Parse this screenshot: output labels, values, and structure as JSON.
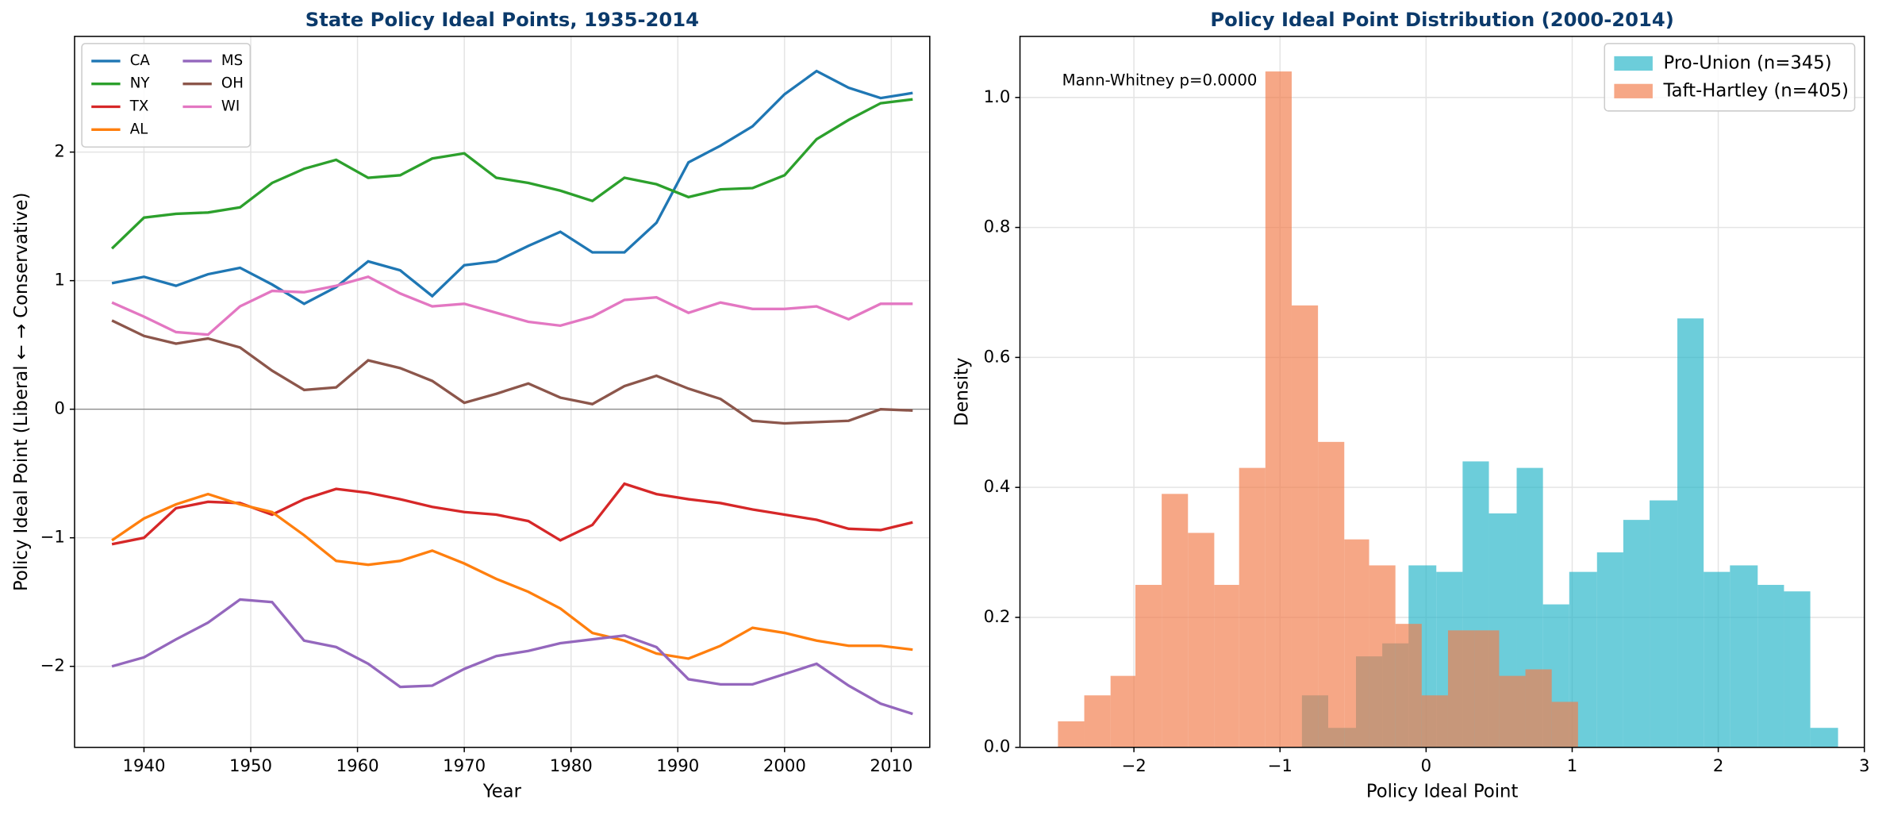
{
  "chart_data": [
    {
      "type": "line",
      "title": "State Policy Ideal Points, 1935-2014",
      "x_label": "Year",
      "y_label": "Policy Ideal Point (Liberal ← → Conservative)",
      "x": [
        1937,
        1940,
        1943,
        1946,
        1949,
        1952,
        1955,
        1958,
        1961,
        1964,
        1967,
        1970,
        1973,
        1976,
        1979,
        1982,
        1985,
        1988,
        1991,
        1994,
        1997,
        2000,
        2003,
        2006,
        2009,
        2012
      ],
      "series": [
        {
          "name": "CA",
          "color": "#1f77b4",
          "values": [
            0.98,
            1.03,
            0.96,
            1.05,
            1.1,
            0.97,
            0.82,
            0.95,
            1.15,
            1.08,
            0.88,
            1.12,
            1.15,
            1.27,
            1.38,
            1.22,
            1.22,
            1.45,
            1.92,
            2.05,
            2.2,
            2.45,
            2.63,
            2.5,
            2.42,
            2.46
          ]
        },
        {
          "name": "NY",
          "color": "#2ca02c",
          "values": [
            1.25,
            1.49,
            1.52,
            1.53,
            1.57,
            1.76,
            1.87,
            1.94,
            1.8,
            1.82,
            1.95,
            1.99,
            1.8,
            1.76,
            1.7,
            1.62,
            1.8,
            1.75,
            1.65,
            1.71,
            1.72,
            1.82,
            2.1,
            2.25,
            2.38,
            2.41
          ]
        },
        {
          "name": "TX",
          "color": "#d62728",
          "values": [
            -1.05,
            -1.0,
            -0.77,
            -0.72,
            -0.73,
            -0.82,
            -0.7,
            -0.62,
            -0.65,
            -0.7,
            -0.76,
            -0.8,
            -0.82,
            -0.87,
            -1.02,
            -0.9,
            -0.58,
            -0.66,
            -0.7,
            -0.73,
            -0.78,
            -0.82,
            -0.86,
            -0.93,
            -0.94,
            -0.88
          ]
        },
        {
          "name": "AL",
          "color": "#ff7f0e",
          "values": [
            -1.02,
            -0.85,
            -0.74,
            -0.66,
            -0.74,
            -0.8,
            -0.98,
            -1.18,
            -1.21,
            -1.18,
            -1.1,
            -1.2,
            -1.32,
            -1.42,
            -1.55,
            -1.74,
            -1.8,
            -1.9,
            -1.94,
            -1.84,
            -1.7,
            -1.74,
            -1.8,
            -1.84,
            -1.84,
            -1.87
          ]
        },
        {
          "name": "MS",
          "color": "#9467bd",
          "values": [
            -2.0,
            -1.93,
            -1.79,
            -1.66,
            -1.48,
            -1.5,
            -1.8,
            -1.85,
            -1.98,
            -2.16,
            -2.15,
            -2.02,
            -1.92,
            -1.88,
            -1.82,
            -1.79,
            -1.76,
            -1.85,
            -2.1,
            -2.14,
            -2.14,
            -2.06,
            -1.98,
            -2.15,
            -2.29,
            -2.37
          ]
        },
        {
          "name": "OH",
          "color": "#8c564b",
          "values": [
            0.69,
            0.57,
            0.51,
            0.55,
            0.48,
            0.3,
            0.15,
            0.17,
            0.38,
            0.32,
            0.22,
            0.05,
            0.12,
            0.2,
            0.09,
            0.04,
            0.18,
            0.26,
            0.16,
            0.08,
            -0.09,
            -0.11,
            -0.1,
            -0.09,
            0.0,
            -0.01
          ]
        },
        {
          "name": "WI",
          "color": "#e377c2",
          "values": [
            0.83,
            0.72,
            0.6,
            0.58,
            0.8,
            0.92,
            0.91,
            0.96,
            1.03,
            0.9,
            0.8,
            0.82,
            0.75,
            0.68,
            0.65,
            0.72,
            0.85,
            0.87,
            0.75,
            0.83,
            0.78,
            0.78,
            0.8,
            0.7,
            0.82,
            0.82
          ]
        }
      ],
      "xlim": [
        1933.5,
        2013.6
      ],
      "xticks": [
        1940,
        1950,
        1960,
        1970,
        1980,
        1990,
        2000,
        2010
      ],
      "ylim": [
        -2.63,
        2.9
      ],
      "yticks": [
        {
          "value": -2,
          "label": "−2"
        },
        {
          "value": -1,
          "label": "−1"
        },
        0,
        1,
        2
      ],
      "reference_line": 0,
      "grid": true,
      "legend": "upper left",
      "legend_columns": 2
    },
    {
      "type": "histogram",
      "title": "Policy Ideal Point Distribution (2000-2014)",
      "x_label": "Policy Ideal Point",
      "y_label": "Density",
      "annotation": "Mann-Whitney p=0.0000",
      "series": [
        {
          "name": "Pro-Union (n=345)",
          "color": "#26b5c9",
          "bins": [
            -0.85,
            -0.67,
            -0.48,
            -0.3,
            -0.12,
            0.07,
            0.25,
            0.43,
            0.62,
            0.8,
            0.98,
            1.17,
            1.35,
            1.53,
            1.72,
            1.9,
            2.08,
            2.27,
            2.45,
            2.63,
            2.82
          ],
          "values": [
            0.08,
            0.03,
            0.14,
            0.16,
            0.28,
            0.27,
            0.44,
            0.36,
            0.43,
            0.22,
            0.27,
            0.3,
            0.35,
            0.38,
            0.66,
            0.27,
            0.28,
            0.25,
            0.24,
            0.03
          ]
        },
        {
          "name": "Taft-Hartley (n=405)",
          "color": "#f27d4c",
          "bins": [
            -2.52,
            -2.34,
            -2.16,
            -1.99,
            -1.81,
            -1.63,
            -1.45,
            -1.28,
            -1.1,
            -0.92,
            -0.74,
            -0.56,
            -0.39,
            -0.21,
            -0.03,
            0.15,
            0.33,
            0.5,
            0.68,
            0.86,
            1.04
          ],
          "values": [
            0.04,
            0.08,
            0.11,
            0.25,
            0.39,
            0.33,
            0.25,
            0.43,
            1.04,
            0.68,
            0.47,
            0.32,
            0.28,
            0.19,
            0.08,
            0.18,
            0.18,
            0.11,
            0.12,
            0.07
          ]
        }
      ],
      "xlim": [
        -2.78,
        3.0
      ],
      "xticks": [
        {
          "value": -2,
          "label": "−2"
        },
        {
          "value": -1,
          "label": "−1"
        },
        0,
        1,
        2,
        3
      ],
      "ylim": [
        0,
        1.094
      ],
      "yticks": [
        {
          "value": 0,
          "label": "0.0"
        },
        {
          "value": 0.2,
          "label": "0.2"
        },
        {
          "value": 0.4,
          "label": "0.4"
        },
        {
          "value": 0.6,
          "label": "0.6"
        },
        {
          "value": 0.8,
          "label": "0.8"
        },
        {
          "value": 1.0,
          "label": "1.0"
        }
      ],
      "grid": true,
      "legend": "upper right"
    }
  ]
}
